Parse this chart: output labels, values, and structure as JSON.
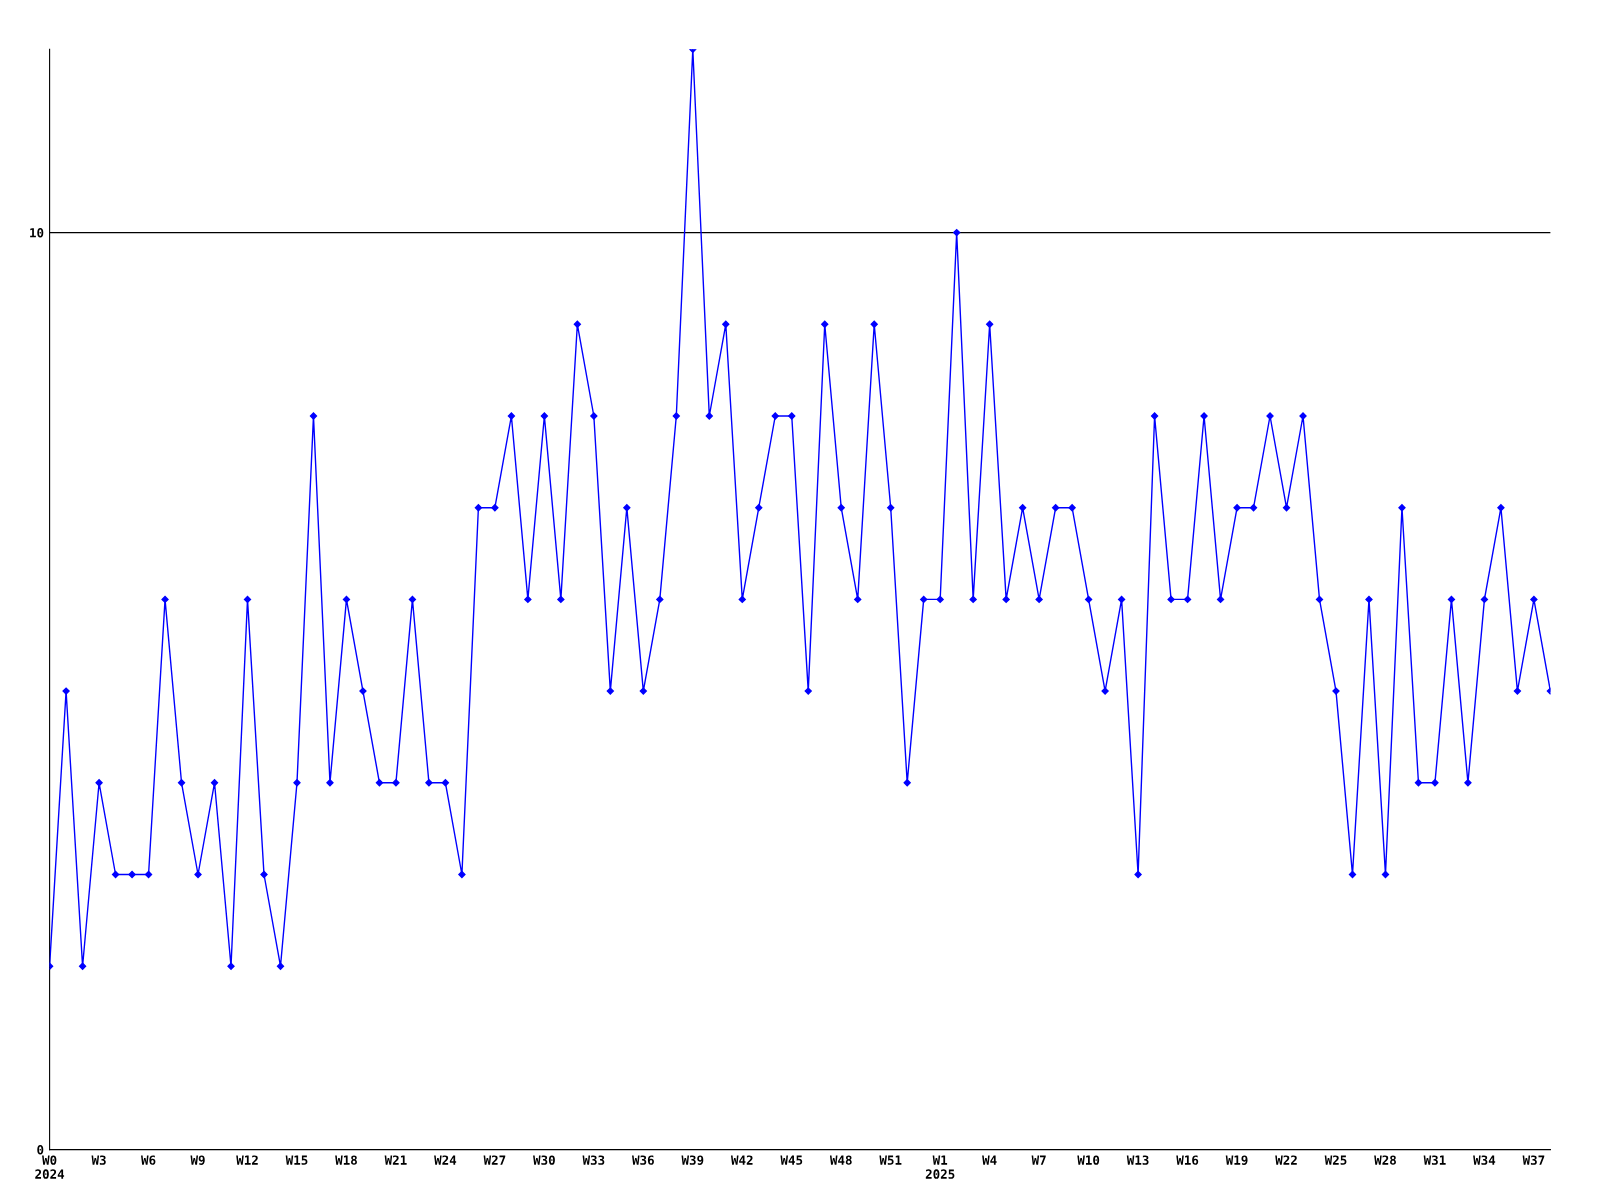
{
  "chart_data": {
    "type": "line",
    "categories": [
      "W0\n2024",
      null,
      null,
      "W3",
      null,
      null,
      "W6",
      null,
      null,
      "W9",
      null,
      null,
      "W12",
      null,
      null,
      "W15",
      null,
      null,
      "W18",
      null,
      null,
      "W21",
      null,
      null,
      "W24",
      null,
      null,
      "W27",
      null,
      null,
      "W30",
      null,
      null,
      "W33",
      null,
      null,
      "W36",
      null,
      null,
      "W39",
      null,
      null,
      "W42",
      null,
      null,
      "W45",
      null,
      null,
      "W48",
      null,
      null,
      "W51",
      null,
      null,
      "W1\n2025",
      null,
      null,
      "W4",
      null,
      null,
      "W7",
      null,
      null,
      "W10",
      null,
      null,
      "W13",
      null,
      null,
      "W16",
      null,
      null,
      "W19",
      null,
      null,
      "W22",
      null,
      null,
      "W25",
      null,
      null,
      "W28",
      null,
      null,
      "W31",
      null,
      null,
      "W34",
      null,
      null,
      "W37",
      null
    ],
    "series": [
      {
        "color": "#0000ff",
        "values": [
          2,
          5,
          2,
          4,
          3,
          3,
          3,
          6,
          4,
          3,
          4,
          2,
          6,
          3,
          2,
          4,
          8,
          4,
          6,
          5,
          4,
          4,
          6,
          4,
          4,
          3,
          7,
          7,
          8,
          6,
          8,
          6,
          9,
          8,
          5,
          7,
          5,
          6,
          8,
          12,
          8,
          9,
          6,
          7,
          8,
          8,
          5,
          9,
          7,
          6,
          9,
          7,
          4,
          6,
          6,
          10,
          6,
          9,
          6,
          7,
          6,
          7,
          7,
          6,
          5,
          6,
          3,
          8,
          6,
          6,
          8,
          6,
          7,
          7,
          8,
          7,
          8,
          6,
          5,
          3,
          6,
          3,
          7,
          4,
          4,
          6,
          4,
          6,
          7,
          5,
          6,
          5
        ]
      }
    ],
    "ylim": [
      0,
      12
    ],
    "yticks": [
      0,
      10
    ],
    "grid": "y",
    "marker": "diamond",
    "line_style": "solid"
  }
}
